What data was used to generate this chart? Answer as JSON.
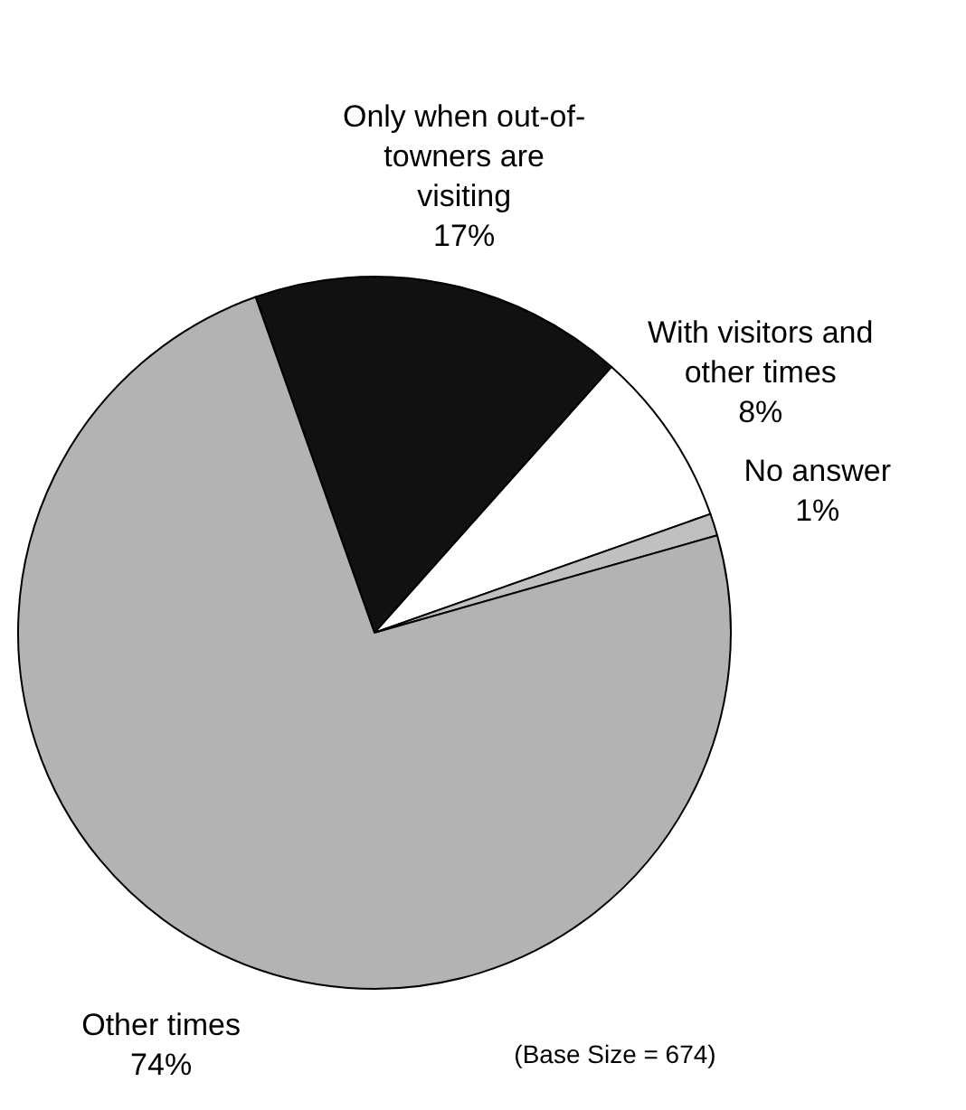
{
  "chart_data": {
    "type": "pie",
    "categories": [
      "Only when out-of-towners are visiting",
      "With visitors and other times",
      "No answer",
      "Other times"
    ],
    "values": [
      17,
      8,
      1,
      74
    ],
    "value_labels": [
      "17%",
      "8%",
      "1%",
      "74%"
    ],
    "colors": [
      "#111111",
      "#ffffff",
      "#c0c0c0",
      "#b3b3b3"
    ],
    "annotations": [
      "(Base Size = 674)"
    ]
  }
}
